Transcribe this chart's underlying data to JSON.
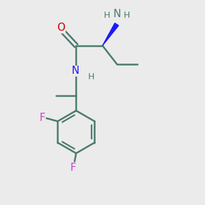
{
  "background_color": "#ebebeb",
  "bond_color": "#4a7a6e",
  "bond_width": 1.8,
  "N_color": "#1a1aff",
  "O_color": "#cc0000",
  "F_color": "#cc44cc",
  "NH2_color": "#4a7a6e",
  "stereo_bond_color": "#1a1aff",
  "font_size": 11,
  "figsize": [
    3.0,
    3.0
  ],
  "dpi": 100,
  "xlim": [
    0,
    10
  ],
  "ylim": [
    0,
    10
  ]
}
